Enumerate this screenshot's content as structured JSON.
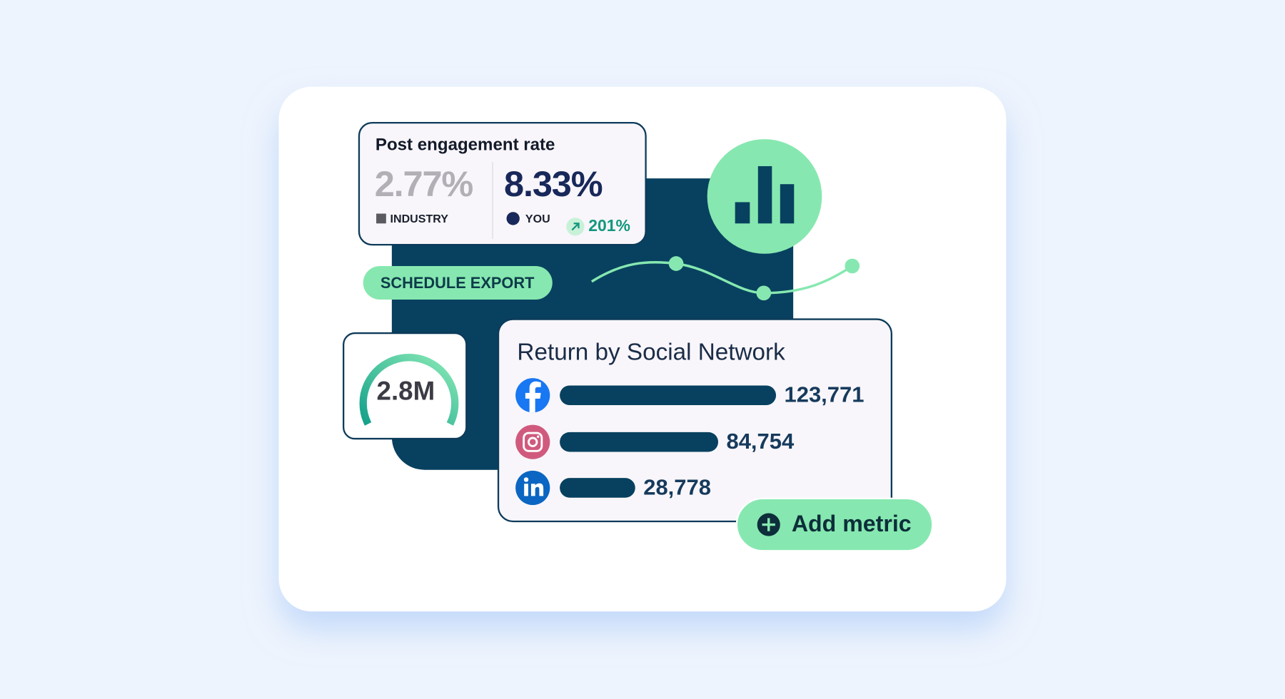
{
  "engagement": {
    "title": "Post engagement rate",
    "industry_value": "2.77%",
    "industry_label": "INDUSTRY",
    "you_value": "8.33%",
    "you_label": "YOU",
    "change": "201%"
  },
  "schedule_button": "SCHEDULE EXPORT",
  "gauge": {
    "value": "2.8M"
  },
  "return_by_network": {
    "title": "Return by Social Network",
    "values": [
      123771,
      84754,
      28778
    ],
    "value_labels": [
      "123,771",
      "84,754",
      "28,778"
    ]
  },
  "add_metric_button": "Add metric"
}
